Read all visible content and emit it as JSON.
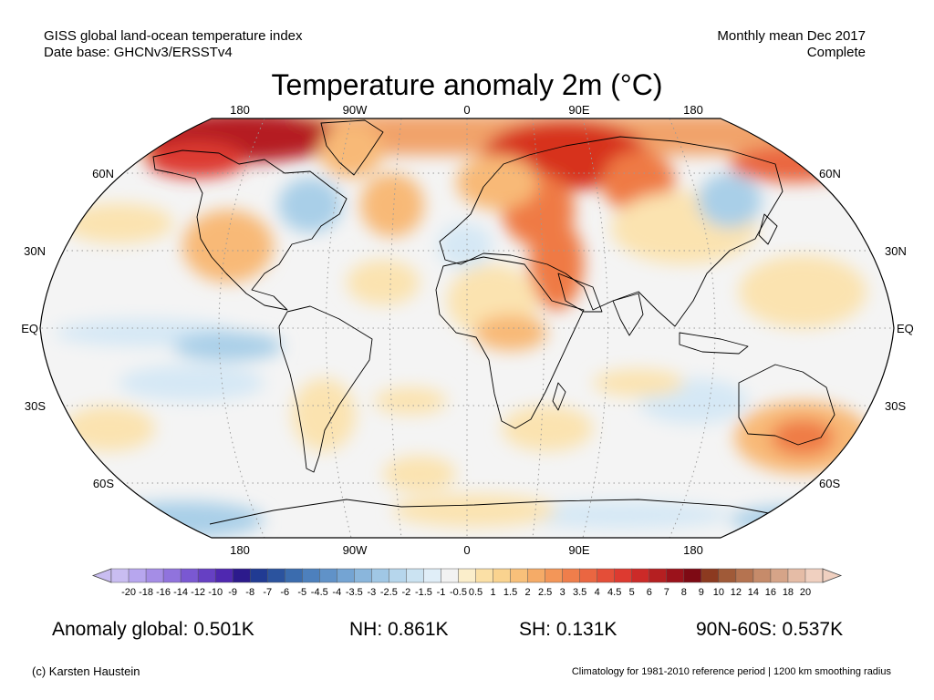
{
  "header": {
    "left_line1": "GISS global land-ocean temperature index",
    "left_line2": "Date base: GHCNv3/ERSSTv4",
    "right_line1": "Monthly mean Dec 2017",
    "right_line2": "Complete"
  },
  "title": "Temperature anomaly 2m (°C)",
  "map": {
    "projection": "Robinson",
    "lon_labels": [
      "180",
      "90W",
      "0",
      "90E",
      "180"
    ],
    "lat_labels": [
      "60N",
      "30N",
      "EQ",
      "30S",
      "60S"
    ],
    "lat_labels_right": [
      "60N",
      "30N",
      "EQ",
      "30S",
      "60S"
    ],
    "colors": {
      "neutral": "#f2f2f2",
      "warm_light": "#fbe3b0",
      "warm_mid": "#f8b977",
      "warm_strong": "#ef7a45",
      "hot": "#d7301f",
      "very_hot": "#a80f16",
      "cool_light": "#d5e8f5",
      "cool_mid": "#a9cfe8"
    }
  },
  "colorbar": {
    "ticks": [
      "-20",
      "-18",
      "-16",
      "-14",
      "-12",
      "-10",
      "-9",
      "-8",
      "-7",
      "-6",
      "-5",
      "-4.5",
      "-4",
      "-3.5",
      "-3",
      "-2.5",
      "-2",
      "-1.5",
      "-1",
      "-0.5",
      "0.5",
      "1",
      "1.5",
      "2",
      "2.5",
      "3",
      "3.5",
      "4",
      "4.5",
      "5",
      "6",
      "7",
      "8",
      "9",
      "10",
      "12",
      "14",
      "16",
      "18",
      "20"
    ],
    "colors": [
      "#c9bdf1",
      "#b7a6ee",
      "#a58de6",
      "#9073dd",
      "#7a58d2",
      "#6640c3",
      "#4f28b0",
      "#2c1a8c",
      "#213b93",
      "#2b539e",
      "#3b6cae",
      "#4d80bd",
      "#6092c8",
      "#74a4d3",
      "#8ab6dc",
      "#a0c7e5",
      "#b6d6ec",
      "#cbe3f2",
      "#e0eef8",
      "#f2f2f2",
      "#fbeecb",
      "#fbe0a6",
      "#fad38f",
      "#f8c07a",
      "#f5ab67",
      "#f39658",
      "#ef7e4b",
      "#ea6641",
      "#e44e38",
      "#dd3a30",
      "#cc2a28",
      "#b51f21",
      "#9b121b",
      "#7e0a14",
      "#8c3a20",
      "#a05a38",
      "#b57350",
      "#c68b6a",
      "#d6a488",
      "#e5bca6",
      "#f0d0c0"
    ]
  },
  "stats": {
    "global": "Anomaly global: 0.501K",
    "nh": "NH: 0.861K",
    "sh": "SH: 0.131K",
    "polar": "90N-60S: 0.537K"
  },
  "footer": {
    "credit": "(c) Karsten Haustein",
    "note": "Climatology for 1981-2010 reference period | 1200 km smoothing radius"
  }
}
